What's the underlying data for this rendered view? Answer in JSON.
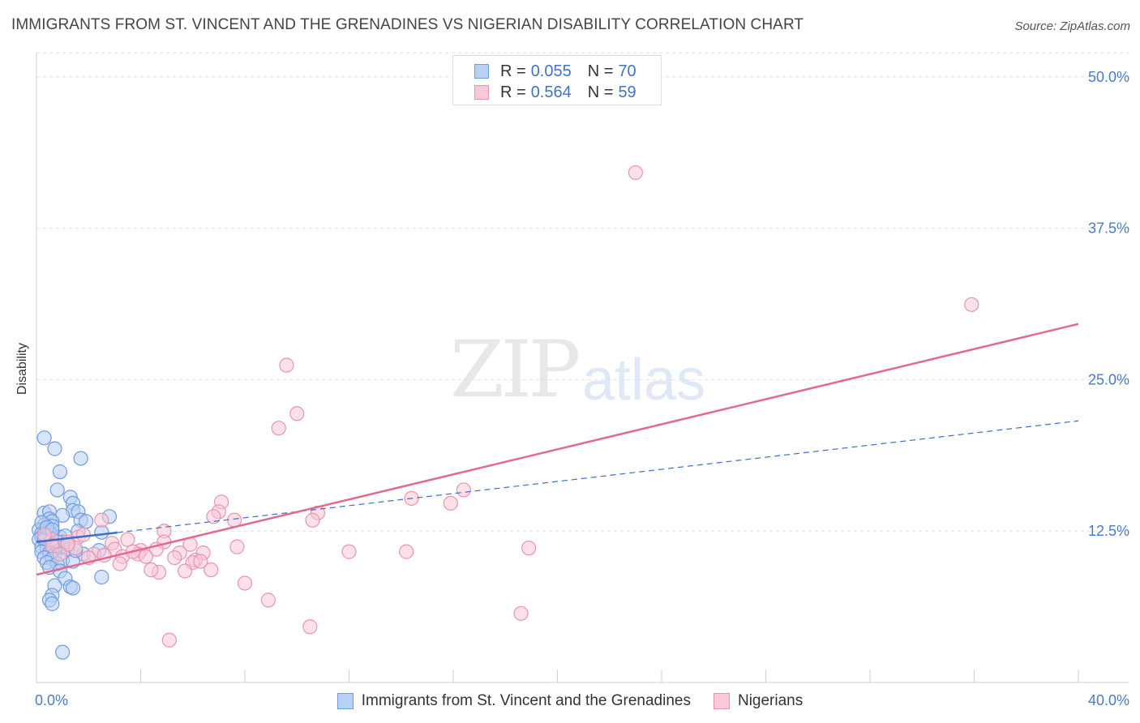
{
  "header": {
    "title": "IMMIGRANTS FROM ST. VINCENT AND THE GRENADINES VS NIGERIAN DISABILITY CORRELATION CHART",
    "source": "Source: ZipAtlas.com"
  },
  "watermark": {
    "zip": "ZIP",
    "atlas": "atlas"
  },
  "legend_top": {
    "rows": [
      {
        "r_label": "R =",
        "r_value": "0.055",
        "n_label": "N =",
        "n_value": "70"
      },
      {
        "r_label": "R =",
        "r_value": "0.564",
        "n_label": "N =",
        "n_value": "59"
      }
    ]
  },
  "colors": {
    "blue_fill": "#b8d0f4",
    "blue_stroke": "#6f9be0",
    "blue_line": "#3a6fc9",
    "pink_fill": "#f9c9d7",
    "pink_stroke": "#ea93ae",
    "pink_line": "#e06a93"
  },
  "chart_data": {
    "type": "scatter",
    "xlabel": "",
    "ylabel": "Disability",
    "xlim": [
      0,
      40
    ],
    "ylim": [
      0,
      52
    ],
    "x_tick_labels": [
      "0.0%",
      "40.0%"
    ],
    "y_ticks": [
      12.5,
      25.0,
      37.5,
      50.0
    ],
    "y_tick_labels": [
      "12.5%",
      "25.0%",
      "37.5%",
      "50.0%"
    ],
    "grid": true,
    "legend": "top-center and bottom",
    "series": [
      {
        "name": "Immigrants from St. Vincent and the Grenadines",
        "color": "blue",
        "trend": {
          "x0": 0,
          "y0": 11.6,
          "x1": 40,
          "y1": 21.6,
          "solid_until": 3.1
        },
        "points": [
          [
            0.3,
            20.2
          ],
          [
            0.7,
            19.3
          ],
          [
            1.7,
            18.5
          ],
          [
            0.9,
            17.4
          ],
          [
            0.8,
            15.9
          ],
          [
            1.3,
            15.3
          ],
          [
            1.4,
            14.8
          ],
          [
            0.3,
            14.0
          ],
          [
            0.5,
            14.1
          ],
          [
            1.4,
            14.2
          ],
          [
            1.6,
            14.1
          ],
          [
            1.0,
            13.8
          ],
          [
            0.5,
            13.5
          ],
          [
            0.6,
            13.3
          ],
          [
            1.7,
            13.4
          ],
          [
            2.8,
            13.7
          ],
          [
            0.3,
            13.0
          ],
          [
            0.6,
            12.9
          ],
          [
            0.3,
            12.7
          ],
          [
            0.4,
            12.5
          ],
          [
            0.1,
            12.6
          ],
          [
            0.2,
            12.3
          ],
          [
            0.5,
            12.4
          ],
          [
            1.6,
            12.5
          ],
          [
            2.5,
            12.4
          ],
          [
            0.2,
            12.0
          ],
          [
            0.4,
            12.1
          ],
          [
            0.6,
            12.2
          ],
          [
            0.9,
            12.0
          ],
          [
            1.1,
            12.1
          ],
          [
            0.1,
            11.8
          ],
          [
            0.3,
            11.7
          ],
          [
            0.5,
            11.5
          ],
          [
            0.7,
            11.4
          ],
          [
            1.0,
            11.6
          ],
          [
            0.2,
            11.2
          ],
          [
            0.4,
            11.0
          ],
          [
            0.6,
            11.1
          ],
          [
            0.9,
            11.2
          ],
          [
            1.2,
            11.0
          ],
          [
            0.2,
            10.8
          ],
          [
            0.5,
            10.7
          ],
          [
            0.7,
            10.5
          ],
          [
            0.3,
            10.3
          ],
          [
            0.6,
            10.2
          ],
          [
            1.0,
            10.1
          ],
          [
            1.8,
            10.6
          ],
          [
            2.4,
            10.9
          ],
          [
            0.4,
            9.9
          ],
          [
            0.8,
            9.8
          ],
          [
            1.4,
            10.0
          ],
          [
            0.5,
            9.5
          ],
          [
            0.9,
            9.2
          ],
          [
            1.1,
            8.6
          ],
          [
            0.7,
            8.0
          ],
          [
            1.3,
            7.9
          ],
          [
            1.4,
            7.8
          ],
          [
            0.6,
            7.2
          ],
          [
            0.5,
            6.8
          ],
          [
            0.6,
            6.5
          ],
          [
            2.5,
            8.7
          ],
          [
            0.3,
            11.9
          ],
          [
            0.8,
            11.3
          ],
          [
            1.5,
            10.9
          ],
          [
            0.2,
            13.2
          ],
          [
            1.9,
            13.3
          ],
          [
            0.4,
            12.8
          ],
          [
            0.6,
            12.6
          ],
          [
            1.0,
            2.5
          ],
          [
            0.8,
            11.6
          ]
        ]
      },
      {
        "name": "Nigerians",
        "color": "pink",
        "trend": {
          "x0": 0,
          "y0": 8.9,
          "x1": 40,
          "y1": 29.6
        },
        "points": [
          [
            23.0,
            42.1
          ],
          [
            35.9,
            31.2
          ],
          [
            9.6,
            26.2
          ],
          [
            10.0,
            22.2
          ],
          [
            9.3,
            21.0
          ],
          [
            16.4,
            15.9
          ],
          [
            14.4,
            15.2
          ],
          [
            15.9,
            14.8
          ],
          [
            7.1,
            14.9
          ],
          [
            7.0,
            14.1
          ],
          [
            10.8,
            14.0
          ],
          [
            6.8,
            13.7
          ],
          [
            7.6,
            13.4
          ],
          [
            10.6,
            13.4
          ],
          [
            2.5,
            13.4
          ],
          [
            4.9,
            12.5
          ],
          [
            1.6,
            12.0
          ],
          [
            3.5,
            11.8
          ],
          [
            0.6,
            11.8
          ],
          [
            1.2,
            11.6
          ],
          [
            0.3,
            12.2
          ],
          [
            2.9,
            11.5
          ],
          [
            4.9,
            11.6
          ],
          [
            5.9,
            11.4
          ],
          [
            0.6,
            11.3
          ],
          [
            7.7,
            11.2
          ],
          [
            18.9,
            11.1
          ],
          [
            12.0,
            10.8
          ],
          [
            14.2,
            10.8
          ],
          [
            1.5,
            11.1
          ],
          [
            3.0,
            11.0
          ],
          [
            4.0,
            10.9
          ],
          [
            4.6,
            11.0
          ],
          [
            5.5,
            10.7
          ],
          [
            6.4,
            10.7
          ],
          [
            2.2,
            10.6
          ],
          [
            2.6,
            10.5
          ],
          [
            3.3,
            10.4
          ],
          [
            3.9,
            10.6
          ],
          [
            4.2,
            10.4
          ],
          [
            5.3,
            10.3
          ],
          [
            6.1,
            10.1
          ],
          [
            6.0,
            9.9
          ],
          [
            6.3,
            10.0
          ],
          [
            3.2,
            9.8
          ],
          [
            5.7,
            9.2
          ],
          [
            4.7,
            9.1
          ],
          [
            4.4,
            9.3
          ],
          [
            6.7,
            9.3
          ],
          [
            8.0,
            8.2
          ],
          [
            8.9,
            6.8
          ],
          [
            18.6,
            5.7
          ],
          [
            10.5,
            4.6
          ],
          [
            5.1,
            3.5
          ],
          [
            1.2,
            11.4
          ],
          [
            2.0,
            10.3
          ],
          [
            0.9,
            10.6
          ],
          [
            1.8,
            12.2
          ],
          [
            3.7,
            10.8
          ]
        ]
      }
    ]
  }
}
